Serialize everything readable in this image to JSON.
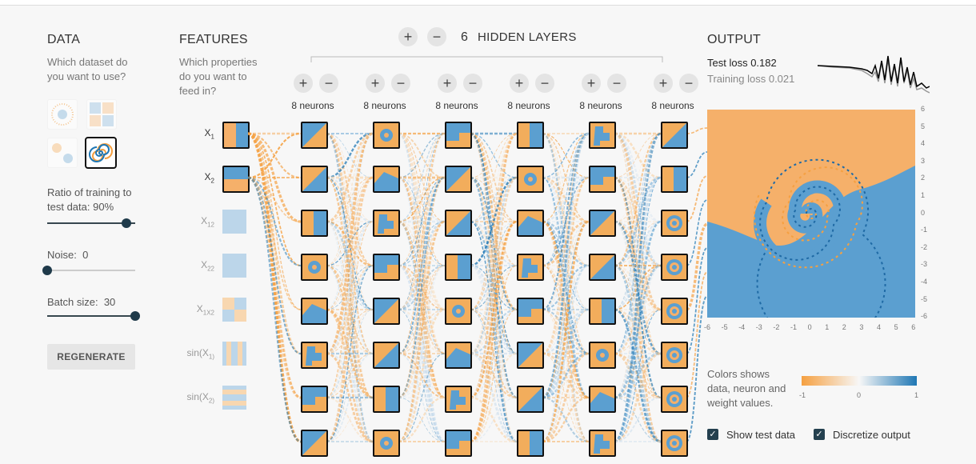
{
  "data_section": {
    "title": "DATA",
    "question": "Which dataset do you want to use?",
    "datasets": [
      "circle-dataset",
      "xor-dataset",
      "gauss-dataset",
      "spiral-dataset"
    ],
    "selected_dataset": "spiral-dataset",
    "ratio_label": "Ratio of training to test data:",
    "ratio_value": "90%",
    "ratio_fraction": 0.9,
    "noise_label": "Noise:",
    "noise_value": "0",
    "noise_fraction": 0.0,
    "batch_label": "Batch size:",
    "batch_value": "30",
    "batch_fraction": 1.0,
    "regenerate_label": "REGENERATE"
  },
  "features_section": {
    "title": "FEATURES",
    "question": "Which properties do you want to feed in?",
    "features": [
      {
        "label": "X1",
        "base": "X",
        "sub": "1",
        "active": true
      },
      {
        "label": "X2",
        "base": "X",
        "sub": "2",
        "active": true
      },
      {
        "label": "X12",
        "base": "X",
        "sub": "12",
        "active": false
      },
      {
        "label": "X22",
        "base": "X",
        "sub": "22",
        "active": false
      },
      {
        "label": "X1X2",
        "base": "X",
        "sub": "1X2",
        "active": false
      },
      {
        "label": "sin(X1)",
        "base": "sin(X",
        "sub": "1)",
        "active": false
      },
      {
        "label": "sin(X2)",
        "base": "sin(X",
        "sub": "2)",
        "active": false
      }
    ]
  },
  "network": {
    "hidden_layers_count": "6",
    "hidden_layers_label": "HIDDEN LAYERS",
    "plus_symbol": "+",
    "minus_symbol": "−",
    "layers": [
      {
        "neurons_label": "8 neurons",
        "neurons": 8
      },
      {
        "neurons_label": "8 neurons",
        "neurons": 8
      },
      {
        "neurons_label": "8 neurons",
        "neurons": 8
      },
      {
        "neurons_label": "8 neurons",
        "neurons": 8
      },
      {
        "neurons_label": "8 neurons",
        "neurons": 8
      },
      {
        "neurons_label": "8 neurons",
        "neurons": 8
      }
    ]
  },
  "output_section": {
    "title": "OUTPUT",
    "test_loss_label": "Test loss",
    "test_loss_value": "0.182",
    "training_loss_label": "Training loss",
    "training_loss_value": "0.021",
    "y_ticks": [
      "6",
      "5",
      "4",
      "3",
      "2",
      "1",
      "0",
      "-1",
      "-2",
      "-3",
      "-4",
      "-5",
      "-6"
    ],
    "x_ticks": [
      "-6",
      "-5",
      "-4",
      "-3",
      "-2",
      "-1",
      "0",
      "1",
      "2",
      "3",
      "4",
      "5",
      "6"
    ],
    "colors_text": "Colors shows data, neuron and weight values.",
    "colorbar_ticks": [
      "-1",
      "0",
      "1"
    ],
    "show_test_data_label": "Show test data",
    "show_test_data_checked": true,
    "discretize_label": "Discretize output",
    "discretize_checked": true
  },
  "colors": {
    "orange": "#f5a041",
    "light_orange": "#f6b46c",
    "blue": "#1f77b4",
    "light_blue": "#5b9fd0",
    "dark_knob": "#1f3a4a"
  }
}
